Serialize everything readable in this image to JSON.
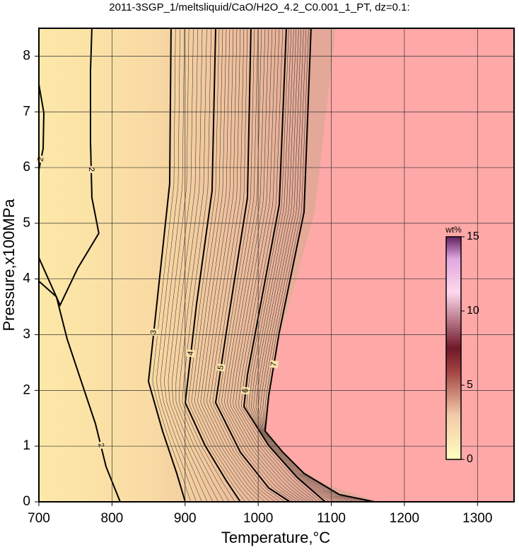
{
  "chart_data": {
    "type": "contour",
    "title": "2011-3SGP_1/meltsliquid/CaO/H2O_4.2_C0.001_1_PT, dz=0.1:",
    "xlabel": "Temperature,°C",
    "ylabel": "Pressure,x100MPa",
    "xlim": [
      700,
      1350
    ],
    "ylim": [
      0,
      8.5
    ],
    "xticks": [
      700,
      800,
      900,
      1000,
      1100,
      1200,
      1300
    ],
    "yticks": [
      0,
      1,
      2,
      3,
      4,
      5,
      6,
      7,
      8
    ],
    "grid": true,
    "contours": [
      {
        "level": 2,
        "x": [
          700,
          706.8,
          705.8,
          700
        ],
        "y": [
          7.49,
          6.98,
          6.34,
          5.96
        ]
      },
      {
        "level": 2,
        "x": [
          700,
          729,
          753,
          782,
          772.5,
          770.6,
          770.6,
          772.5
        ],
        "y": [
          4.38,
          3.53,
          4.19,
          4.82,
          5.46,
          6.47,
          7.74,
          8.5
        ]
      },
      {
        "level": 2,
        "x": [
          700,
          724,
          738.7,
          758,
          777.4,
          791.9,
          811.2
        ],
        "y": [
          3.96,
          3.68,
          2.92,
          2.16,
          1.4,
          0.63,
          0
        ]
      },
      {
        "level": 3,
        "x": [
          880.8,
          878.9,
          864.4,
          849.9,
          869.2,
          888.6,
          900.2
        ],
        "y": [
          8.5,
          5.71,
          3.93,
          2.16,
          1.27,
          0.51,
          0
        ]
      },
      {
        "level": 4,
        "x": [
          941.8,
          936.9,
          915.7,
          900.2,
          927.3,
          956.3,
          975.6
        ],
        "y": [
          8.5,
          5.58,
          3.55,
          1.78,
          1.01,
          0.38,
          0
        ]
      },
      {
        "level": 5,
        "x": [
          990.1,
          985.3,
          956.3,
          941.8,
          975.6,
          1014.3,
          1043.3
        ],
        "y": [
          8.5,
          5.46,
          3.04,
          1.78,
          0.89,
          0.25,
          0
        ]
      },
      {
        "level": 6,
        "x": [
          1038.5,
          1028.8,
          985.3,
          980.5,
          1014.3,
          1053,
          1091.7
        ],
        "y": [
          8.5,
          5.33,
          2.28,
          1.71,
          1.01,
          0.44,
          0
        ]
      },
      {
        "level": 7,
        "x": [
          1072.3,
          1062.7,
          1028.8,
          1014.3,
          1009.5,
          1033.7,
          1062.7,
          1111,
          1159.4
        ],
        "y": [
          8.5,
          5.2,
          3.04,
          1.9,
          1.27,
          0.89,
          0.51,
          0.13,
          0
        ]
      }
    ],
    "region": {
      "color": "#ffa8a8",
      "x": [
        1106.2,
        1077.2,
        1024,
        1009.5,
        1033.7,
        1053,
        1091.7,
        1149.7,
        1159.4,
        1350,
        1350
      ],
      "y": [
        8.5,
        5.2,
        2.66,
        1.27,
        0.95,
        0.63,
        0.32,
        0.06,
        0,
        0,
        8.5
      ]
    },
    "colorbar": {
      "label": "wt%",
      "lim": [
        0,
        15
      ],
      "ticks": [
        0,
        5,
        10,
        15
      ]
    }
  }
}
